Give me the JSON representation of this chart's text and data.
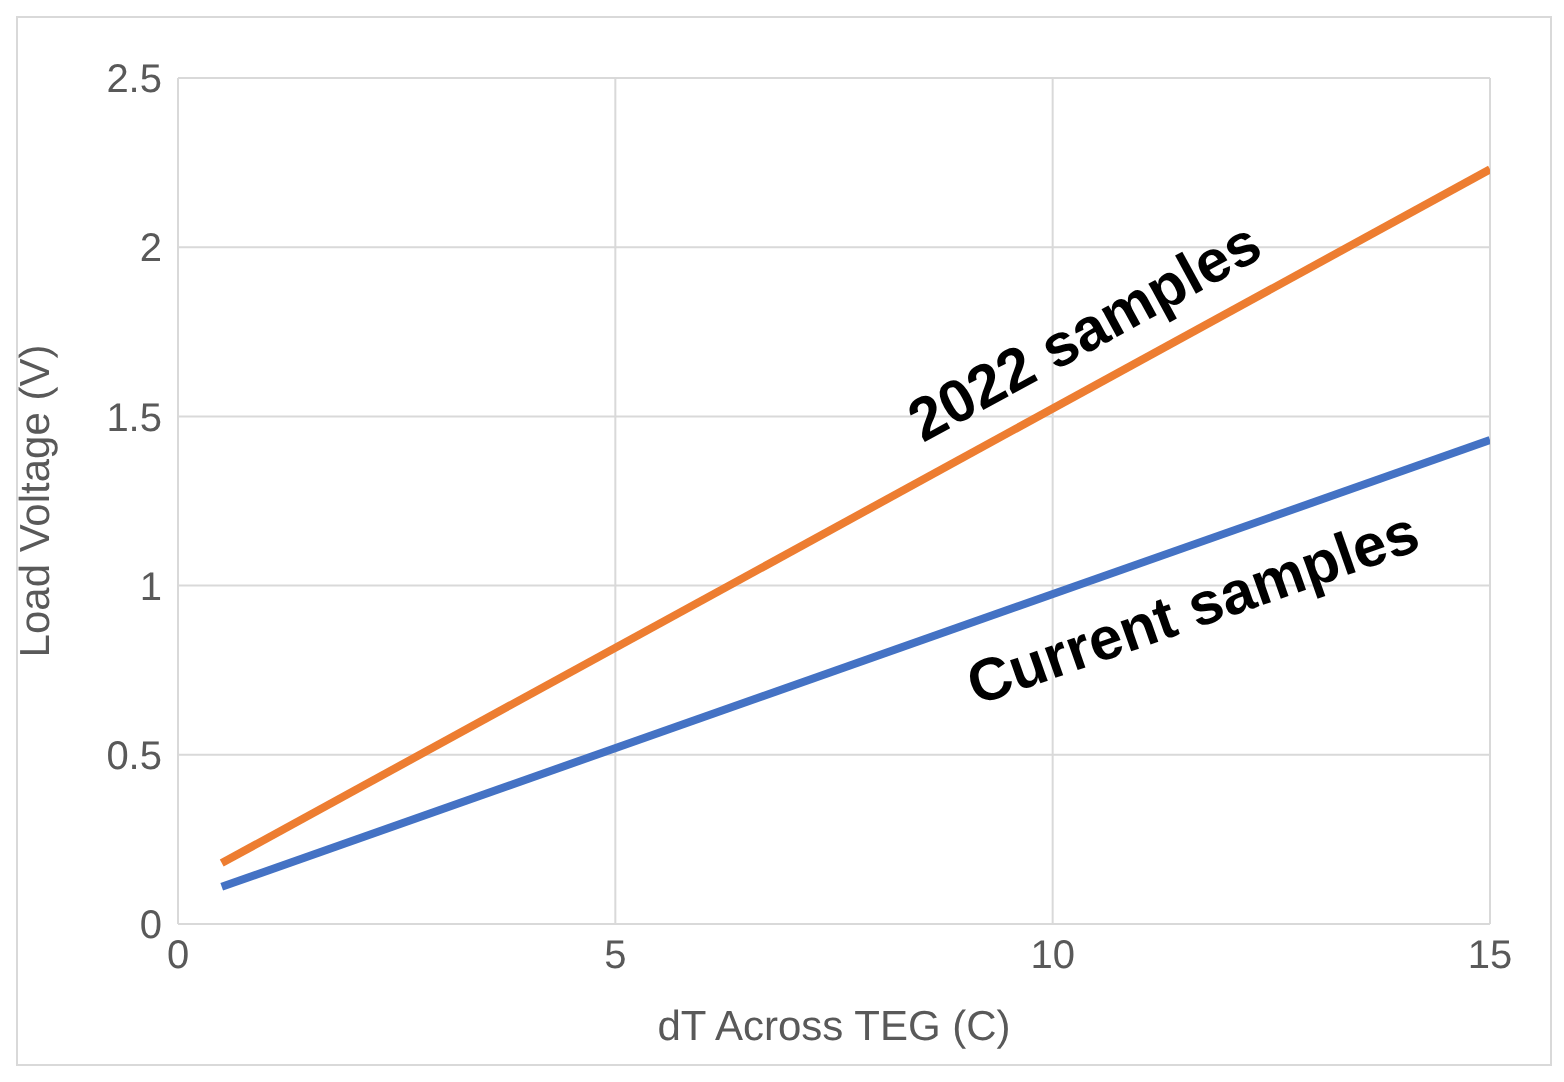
{
  "chart_data": {
    "type": "line",
    "xlabel": "dT Across TEG (C)",
    "ylabel": "Load Voltage (V)",
    "x": [
      0.5,
      15
    ],
    "series": [
      {
        "name": "2022 samples",
        "color": "#ed7d31",
        "values": [
          0.18,
          2.23
        ]
      },
      {
        "name": "Current samples",
        "color": "#4472c4",
        "values": [
          0.11,
          1.43
        ]
      }
    ],
    "xlim": [
      0,
      15
    ],
    "xticks": [
      0,
      5,
      10,
      15
    ],
    "ylim": [
      0,
      2.5
    ],
    "yticks": [
      0,
      0.5,
      1,
      1.5,
      2,
      2.5
    ],
    "grid": true,
    "legend": false,
    "marker": "none",
    "line_style": "solid"
  }
}
